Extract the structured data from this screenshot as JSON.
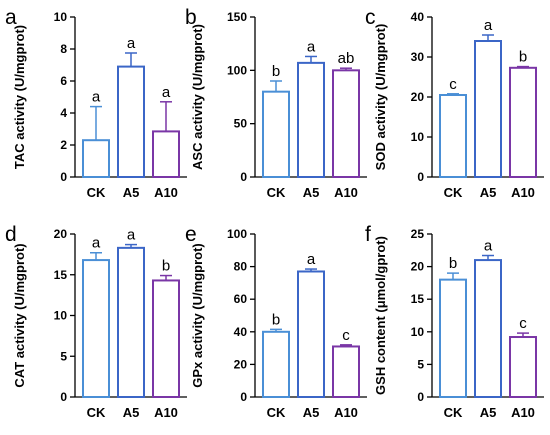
{
  "colors": {
    "CK": "#4a8fd6",
    "A5": "#3b66c7",
    "A10": "#7a36a6",
    "axis": "#000000"
  },
  "chart_data": [
    {
      "panel": "a",
      "type": "bar",
      "ylabel": "TAC activity (U/mgprot)",
      "categories": [
        "CK",
        "A5",
        "A10"
      ],
      "values": [
        2.3,
        6.9,
        2.85
      ],
      "errors": [
        2.1,
        0.85,
        1.85
      ],
      "letters": [
        "a",
        "a",
        "a"
      ],
      "ylim": [
        0,
        10
      ],
      "yticks": [
        "0",
        "2",
        "4",
        "6",
        "8",
        "10"
      ]
    },
    {
      "panel": "b",
      "type": "bar",
      "ylabel": "ASC activity (U/mgprot)",
      "categories": [
        "CK",
        "A5",
        "A10"
      ],
      "values": [
        80,
        107,
        100
      ],
      "errors": [
        10,
        6,
        2
      ],
      "letters": [
        "b",
        "a",
        "ab"
      ],
      "ylim": [
        0,
        150
      ],
      "yticks": [
        "0",
        "50",
        "100",
        "150"
      ]
    },
    {
      "panel": "c",
      "type": "bar",
      "ylabel": "SOD activity (U/mgprot)",
      "categories": [
        "CK",
        "A5",
        "A10"
      ],
      "values": [
        20.5,
        34,
        27.3
      ],
      "errors": [
        0.3,
        1.5,
        0.3
      ],
      "letters": [
        "c",
        "a",
        "b"
      ],
      "ylim": [
        0,
        40
      ],
      "yticks": [
        "0",
        "10",
        "20",
        "30",
        "40"
      ]
    },
    {
      "panel": "d",
      "type": "bar",
      "ylabel": "CAT activity (U/mgprot)",
      "categories": [
        "CK",
        "A5",
        "A10"
      ],
      "values": [
        16.8,
        18.3,
        14.3
      ],
      "errors": [
        0.9,
        0.4,
        0.6
      ],
      "letters": [
        "a",
        "a",
        "b"
      ],
      "ylim": [
        0,
        20
      ],
      "yticks": [
        "0",
        "5",
        "10",
        "15",
        "20"
      ]
    },
    {
      "panel": "e",
      "type": "bar",
      "ylabel": "GPx activity (U/mgprot)",
      "categories": [
        "CK",
        "A5",
        "A10"
      ],
      "values": [
        40,
        77,
        31
      ],
      "errors": [
        1.5,
        1.5,
        1
      ],
      "letters": [
        "b",
        "a",
        "c"
      ],
      "ylim": [
        0,
        100
      ],
      "yticks": [
        "0",
        "20",
        "40",
        "60",
        "80",
        "100"
      ]
    },
    {
      "panel": "f",
      "type": "bar",
      "ylabel": "GSH content (μmol/gprot)",
      "categories": [
        "CK",
        "A5",
        "A10"
      ],
      "values": [
        18,
        21,
        9.2
      ],
      "errors": [
        1,
        0.7,
        0.6
      ],
      "letters": [
        "b",
        "a",
        "c"
      ],
      "ylim": [
        0,
        25
      ],
      "yticks": [
        "0",
        "5",
        "10",
        "15",
        "20",
        "25"
      ]
    }
  ]
}
